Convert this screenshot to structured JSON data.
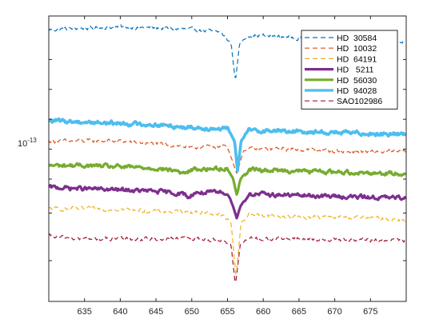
{
  "chart_data": {
    "type": "line",
    "x_ticks": [
      635,
      640,
      645,
      650,
      655,
      660,
      665,
      670,
      675
    ],
    "xlim": [
      630,
      680
    ],
    "y_scale": "log",
    "y_tick_labels": [
      {
        "base": "10",
        "exponent": "-13"
      }
    ],
    "grid": false,
    "legend_position": "top-right",
    "series": [
      {
        "name": "HD  30584",
        "color": "#0072BD",
        "style": "dashed",
        "width": 1.2,
        "points": [
          [
            630,
            1.55
          ],
          [
            640,
            1.56
          ],
          [
            650,
            1.55
          ],
          [
            654,
            1.54
          ],
          [
            655.5,
            1.5
          ],
          [
            656.1,
            1.36
          ],
          [
            656.7,
            1.5
          ],
          [
            658,
            1.53
          ],
          [
            665,
            1.52
          ],
          [
            672,
            1.51
          ],
          [
            680,
            1.5
          ]
        ]
      },
      {
        "name": "HD  10032",
        "color": "#D95319",
        "style": "dashed",
        "width": 1.2,
        "points": [
          [
            630,
            1.14
          ],
          [
            640,
            1.14
          ],
          [
            645,
            1.13
          ],
          [
            649,
            1.12
          ],
          [
            650,
            1.11
          ],
          [
            651,
            1.12
          ],
          [
            655,
            1.12
          ],
          [
            656.3,
            1.02
          ],
          [
            657.3,
            1.11
          ],
          [
            665,
            1.11
          ],
          [
            672,
            1.1
          ],
          [
            680,
            1.1
          ]
        ]
      },
      {
        "name": "HD  64191",
        "color": "#EDB120",
        "style": "dashed",
        "width": 1.2,
        "points": [
          [
            630,
            0.89
          ],
          [
            640,
            0.89
          ],
          [
            645,
            0.88
          ],
          [
            650,
            0.88
          ],
          [
            654,
            0.87
          ],
          [
            655.5,
            0.84
          ],
          [
            656.2,
            0.64
          ],
          [
            656.9,
            0.84
          ],
          [
            658,
            0.87
          ],
          [
            665,
            0.86
          ],
          [
            672,
            0.86
          ],
          [
            680,
            0.85
          ]
        ]
      },
      {
        "name": "HD   5211",
        "color": "#7E2F8E",
        "style": "solid",
        "width": 3.2,
        "points": [
          [
            630,
            0.97
          ],
          [
            635,
            0.965
          ],
          [
            640,
            0.96
          ],
          [
            645,
            0.955
          ],
          [
            649,
            0.945
          ],
          [
            649.6,
            0.93
          ],
          [
            650.3,
            0.95
          ],
          [
            655,
            0.95
          ],
          [
            655.8,
            0.9
          ],
          [
            656.3,
            0.855
          ],
          [
            656.8,
            0.9
          ],
          [
            658,
            0.945
          ],
          [
            665,
            0.94
          ],
          [
            672,
            0.935
          ],
          [
            680,
            0.93
          ]
        ]
      },
      {
        "name": "HD  56030",
        "color": "#77AC30",
        "style": "solid",
        "width": 3.2,
        "points": [
          [
            630,
            1.05
          ],
          [
            635,
            1.05
          ],
          [
            640,
            1.045
          ],
          [
            645,
            1.04
          ],
          [
            648,
            1.03
          ],
          [
            649,
            1.02
          ],
          [
            650,
            1.035
          ],
          [
            655,
            1.04
          ],
          [
            655.8,
            1.0
          ],
          [
            656.3,
            0.94
          ],
          [
            656.8,
            1.0
          ],
          [
            658,
            1.035
          ],
          [
            665,
            1.03
          ],
          [
            672,
            1.025
          ],
          [
            680,
            1.02
          ]
        ]
      },
      {
        "name": "HD  94028",
        "color": "#4DBEEE",
        "style": "solid",
        "width": 3.6,
        "points": [
          [
            630,
            1.215
          ],
          [
            640,
            1.205
          ],
          [
            645,
            1.2
          ],
          [
            650,
            1.19
          ],
          [
            655,
            1.185
          ],
          [
            656,
            1.14
          ],
          [
            656.4,
            1.03
          ],
          [
            656.9,
            1.14
          ],
          [
            658,
            1.18
          ],
          [
            665,
            1.175
          ],
          [
            672,
            1.17
          ],
          [
            680,
            1.165
          ]
        ]
      },
      {
        "name": "SAO102986",
        "color": "#A2142F",
        "style": "dashed",
        "width": 1.2,
        "points": [
          [
            630,
            0.79
          ],
          [
            632,
            0.785
          ],
          [
            635,
            0.78
          ],
          [
            640,
            0.78
          ],
          [
            645,
            0.78
          ],
          [
            650,
            0.78
          ],
          [
            654,
            0.775
          ],
          [
            655.5,
            0.76
          ],
          [
            656.1,
            0.61
          ],
          [
            656.8,
            0.76
          ],
          [
            658,
            0.78
          ],
          [
            665,
            0.78
          ],
          [
            672,
            0.775
          ],
          [
            680,
            0.775
          ]
        ]
      }
    ]
  }
}
